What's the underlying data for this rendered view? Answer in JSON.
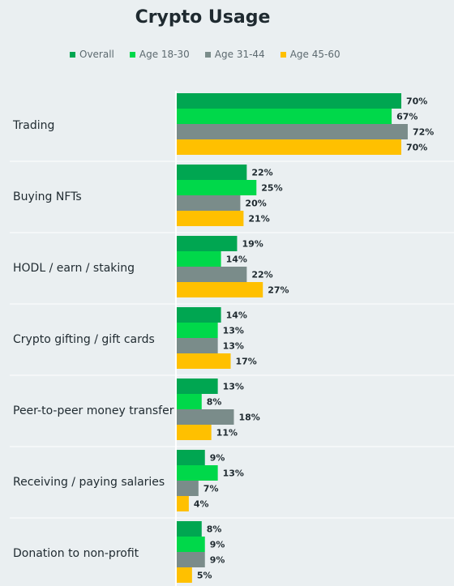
{
  "chart_data": {
    "type": "bar",
    "orientation": "horizontal",
    "title": "Crypto Usage",
    "xlabel": "",
    "ylabel": "",
    "grid": false,
    "legend_position": "top",
    "value_suffix": "%",
    "xlim": [
      0,
      75
    ],
    "categories": [
      "Trading",
      "Buying NFTs",
      "HODL / earn / staking",
      "Crypto gifting / gift cards",
      "Peer-to-peer money transfer",
      "Receiving / paying salaries",
      "Donation to non-profit"
    ],
    "series": [
      {
        "name": "Overall",
        "color": "#00a651",
        "values": [
          70,
          22,
          19,
          14,
          13,
          9,
          8
        ]
      },
      {
        "name": "Age 18-30",
        "color": "#00d84a",
        "values": [
          67,
          25,
          14,
          13,
          8,
          13,
          9
        ]
      },
      {
        "name": "Age 31-44",
        "color": "#7a8c8a",
        "values": [
          72,
          20,
          22,
          13,
          18,
          7,
          9
        ]
      },
      {
        "name": "Age 45-60",
        "color": "#ffc000",
        "values": [
          70,
          21,
          27,
          17,
          11,
          4,
          5
        ]
      }
    ]
  }
}
